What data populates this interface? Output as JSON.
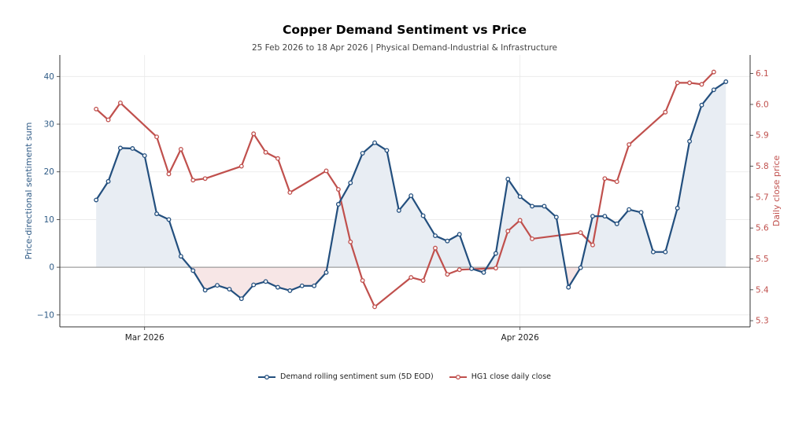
{
  "title": "Copper Demand Sentiment vs Price",
  "subtitle": "25 Feb 2026 to 18 Apr 2026 | Physical Demand-Industrial & Infrastructure",
  "colors": {
    "sentiment": "#234f7e",
    "price": "#c0504d",
    "pos_fill": "#e8edf3",
    "neg_fill": "#f7e6e6",
    "zero_line": "#888888",
    "grid": "#e8e8e8"
  },
  "chart_data": {
    "type": "line",
    "xlabel": "",
    "x_ticks": [
      "Mar 2026",
      "Apr 2026"
    ],
    "y_left_label": "Price-directional sentiment sum",
    "y_right_label": "Daily close price",
    "y_left_ticks": [
      "−10",
      "0",
      "10",
      "20",
      "30",
      "40"
    ],
    "y_right_ticks": [
      "5.3",
      "5.4",
      "5.5",
      "5.6",
      "5.7",
      "5.8",
      "5.9",
      "6.0",
      "6.1"
    ],
    "y_left_lim": [
      -12.5,
      44.5
    ],
    "y_right_lim": [
      5.28,
      6.16
    ],
    "x_range": [
      "2026-02-22",
      "2026-04-20"
    ],
    "grid": true,
    "legend_position": "bottom-center",
    "series": [
      {
        "name": "Demand rolling sentiment sum (5D EOD)",
        "axis": "left",
        "points": [
          [
            "2026-02-25",
            14.1
          ],
          [
            "2026-02-26",
            18.0
          ],
          [
            "2026-02-27",
            25.0
          ],
          [
            "2026-02-28",
            24.9
          ],
          [
            "2026-03-01",
            23.4
          ],
          [
            "2026-03-02",
            11.2
          ],
          [
            "2026-03-03",
            10.0
          ],
          [
            "2026-03-04",
            2.3
          ],
          [
            "2026-03-05",
            -0.7
          ],
          [
            "2026-03-06",
            -4.8
          ],
          [
            "2026-03-07",
            -3.8
          ],
          [
            "2026-03-08",
            -4.6
          ],
          [
            "2026-03-09",
            -6.6
          ],
          [
            "2026-03-10",
            -3.7
          ],
          [
            "2026-03-11",
            -3.0
          ],
          [
            "2026-03-12",
            -4.2
          ],
          [
            "2026-03-13",
            -4.9
          ],
          [
            "2026-03-14",
            -3.9
          ],
          [
            "2026-03-15",
            -3.9
          ],
          [
            "2026-03-16",
            -1.1
          ],
          [
            "2026-03-17",
            13.2
          ],
          [
            "2026-03-18",
            17.7
          ],
          [
            "2026-03-19",
            23.9
          ],
          [
            "2026-03-20",
            26.1
          ],
          [
            "2026-03-21",
            24.5
          ],
          [
            "2026-03-22",
            11.9
          ],
          [
            "2026-03-23",
            15.0
          ],
          [
            "2026-03-24",
            10.8
          ],
          [
            "2026-03-25",
            6.6
          ],
          [
            "2026-03-26",
            5.5
          ],
          [
            "2026-03-27",
            6.9
          ],
          [
            "2026-03-28",
            -0.3
          ],
          [
            "2026-03-29",
            -1.1
          ],
          [
            "2026-03-30",
            2.9
          ],
          [
            "2026-03-31",
            18.5
          ],
          [
            "2026-04-01",
            14.8
          ],
          [
            "2026-04-02",
            12.8
          ],
          [
            "2026-04-03",
            12.8
          ],
          [
            "2026-04-04",
            10.5
          ],
          [
            "2026-04-05",
            -4.2
          ],
          [
            "2026-04-06",
            -0.1
          ],
          [
            "2026-04-07",
            10.7
          ],
          [
            "2026-04-08",
            10.7
          ],
          [
            "2026-04-09",
            9.1
          ],
          [
            "2026-04-10",
            12.1
          ],
          [
            "2026-04-11",
            11.5
          ],
          [
            "2026-04-12",
            3.2
          ],
          [
            "2026-04-13",
            3.2
          ],
          [
            "2026-04-14",
            12.4
          ],
          [
            "2026-04-15",
            26.4
          ],
          [
            "2026-04-16",
            34.0
          ],
          [
            "2026-04-17",
            37.2
          ],
          [
            "2026-04-18",
            38.9
          ]
        ]
      },
      {
        "name": "HG1 close daily close",
        "axis": "right",
        "points": [
          [
            "2026-02-25",
            5.985
          ],
          [
            "2026-02-26",
            5.95
          ],
          [
            "2026-02-27",
            6.005
          ],
          [
            "2026-03-02",
            5.895
          ],
          [
            "2026-03-03",
            5.775
          ],
          [
            "2026-03-04",
            5.855
          ],
          [
            "2026-03-05",
            5.755
          ],
          [
            "2026-03-06",
            5.76
          ],
          [
            "2026-03-09",
            5.8
          ],
          [
            "2026-03-10",
            5.905
          ],
          [
            "2026-03-11",
            5.845
          ],
          [
            "2026-03-12",
            5.825
          ],
          [
            "2026-03-13",
            5.715
          ],
          [
            "2026-03-16",
            5.785
          ],
          [
            "2026-03-17",
            5.725
          ],
          [
            "2026-03-18",
            5.555
          ],
          [
            "2026-03-19",
            5.43
          ],
          [
            "2026-03-20",
            5.345
          ],
          [
            "2026-03-23",
            5.44
          ],
          [
            "2026-03-24",
            5.43
          ],
          [
            "2026-03-25",
            5.535
          ],
          [
            "2026-03-26",
            5.45
          ],
          [
            "2026-03-27",
            5.465
          ],
          [
            "2026-03-30",
            5.47
          ],
          [
            "2026-03-31",
            5.59
          ],
          [
            "2026-04-01",
            5.625
          ],
          [
            "2026-04-02",
            5.565
          ],
          [
            "2026-04-06",
            5.585
          ],
          [
            "2026-04-07",
            5.545
          ],
          [
            "2026-04-08",
            5.76
          ],
          [
            "2026-04-09",
            5.75
          ],
          [
            "2026-04-10",
            5.87
          ],
          [
            "2026-04-13",
            5.975
          ],
          [
            "2026-04-14",
            6.07
          ],
          [
            "2026-04-15",
            6.07
          ],
          [
            "2026-04-16",
            6.065
          ],
          [
            "2026-04-17",
            6.105
          ]
        ]
      }
    ]
  }
}
